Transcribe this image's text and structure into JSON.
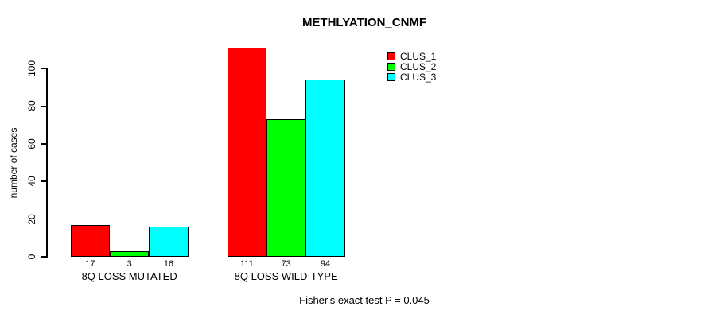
{
  "chart_data": {
    "type": "bar",
    "title": "METHLYATION_CNMF",
    "ylabel": "number of cases",
    "xlabel": "",
    "categories": [
      "8Q LOSS MUTATED",
      "8Q LOSS WILD-TYPE"
    ],
    "series": [
      {
        "name": "CLUS_1",
        "color": "#ff0000",
        "values": [
          17,
          111
        ]
      },
      {
        "name": "CLUS_2",
        "color": "#00ff00",
        "values": [
          3,
          73
        ]
      },
      {
        "name": "CLUS_3",
        "color": "#00ffff",
        "values": [
          16,
          94
        ]
      }
    ],
    "yticks": [
      0,
      20,
      40,
      60,
      80,
      100
    ],
    "ylim": [
      0,
      111
    ],
    "grid": false,
    "bar_value_labels_shown": true,
    "legend_position": "top-right",
    "annotation": "Fisher's exact test P = 0.045"
  },
  "colors": {
    "background": "#ffffff",
    "text": "#000000",
    "axis": "#000000",
    "bar_border": "#000000"
  }
}
